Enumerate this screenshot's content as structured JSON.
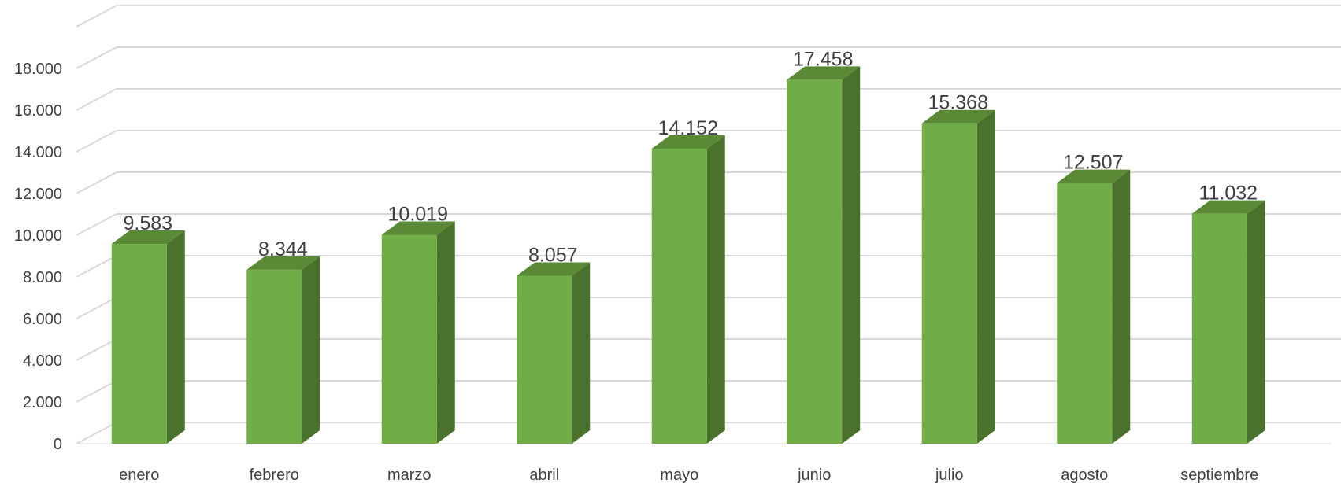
{
  "chart_data": {
    "type": "bar",
    "style": "3d-column",
    "title": "",
    "xlabel": "",
    "ylabel": "",
    "categories": [
      "enero",
      "febrero",
      "marzo",
      "abril",
      "mayo",
      "junio",
      "julio",
      "agosto",
      "septiembre"
    ],
    "values": [
      9583,
      8344,
      10019,
      8057,
      14152,
      17458,
      15368,
      12507,
      11032
    ],
    "value_labels": [
      "9.583",
      "8.344",
      "10.019",
      "8.057",
      "14.152",
      "17.458",
      "15.368",
      "12.507",
      "11.032"
    ],
    "y_ticks": [
      0,
      2000,
      4000,
      6000,
      8000,
      10000,
      12000,
      14000,
      16000,
      18000
    ],
    "y_tick_labels": [
      "0",
      "2.000",
      "4.000",
      "6.000",
      "8.000",
      "10.000",
      "12.000",
      "14.000",
      "16.000",
      "18.000"
    ],
    "ylim": [
      0,
      20000
    ],
    "grid": true,
    "legend": "none",
    "colors": {
      "bar_front": "#70ad47",
      "bar_side": "#4a722d",
      "bar_top": "#5a8a36",
      "grid": "#d9d9d9",
      "text": "#404040"
    }
  }
}
